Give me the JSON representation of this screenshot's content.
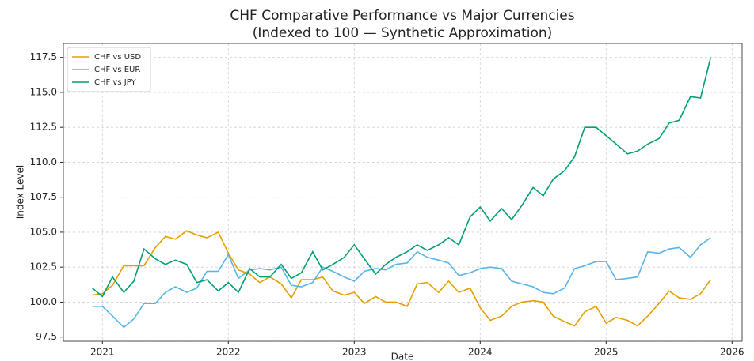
{
  "chart_data": {
    "type": "line",
    "title": "CHF Comparative Performance vs Major Currencies",
    "subtitle": "(Indexed to 100 — Synthetic Approximation)",
    "x_label": "Date",
    "y_label": "Index Level",
    "x": [
      2020.92,
      2021.0,
      2021.08,
      2021.17,
      2021.25,
      2021.33,
      2021.42,
      2021.5,
      2021.58,
      2021.67,
      2021.75,
      2021.83,
      2021.92,
      2022.0,
      2022.08,
      2022.17,
      2022.25,
      2022.33,
      2022.42,
      2022.5,
      2022.58,
      2022.67,
      2022.75,
      2022.83,
      2022.92,
      2023.0,
      2023.08,
      2023.17,
      2023.25,
      2023.33,
      2023.42,
      2023.5,
      2023.58,
      2023.67,
      2023.75,
      2023.83,
      2023.92,
      2024.0,
      2024.08,
      2024.17,
      2024.25,
      2024.33,
      2024.42,
      2024.5,
      2024.58,
      2024.67,
      2024.75,
      2024.83,
      2024.92,
      2025.0,
      2025.08,
      2025.17,
      2025.25,
      2025.33,
      2025.42,
      2025.5,
      2025.58,
      2025.67,
      2025.75,
      2025.83
    ],
    "series": [
      {
        "name": "CHF vs USD",
        "color": "#e69f00",
        "values": [
          100.5,
          100.6,
          101.2,
          102.6,
          102.6,
          102.6,
          103.9,
          104.7,
          104.5,
          105.1,
          104.8,
          104.6,
          105.0,
          103.5,
          102.3,
          102.0,
          101.4,
          101.8,
          101.3,
          100.3,
          101.6,
          101.6,
          101.8,
          100.8,
          100.5,
          100.7,
          99.9,
          100.4,
          100.0,
          100.0,
          99.7,
          101.3,
          101.4,
          100.7,
          101.5,
          100.7,
          101.0,
          99.6,
          98.7,
          99.0,
          99.7,
          100.0,
          100.1,
          100.0,
          99.0,
          98.6,
          98.3,
          99.3,
          99.7,
          98.5,
          98.9,
          98.7,
          98.3,
          99.0,
          99.9,
          100.8,
          100.3,
          100.2,
          100.6,
          101.6
        ]
      },
      {
        "name": "CHF vs EUR",
        "color": "#56b4e9",
        "values": [
          99.7,
          99.7,
          99.0,
          98.2,
          98.8,
          99.9,
          99.9,
          100.7,
          101.1,
          100.7,
          101.0,
          102.2,
          102.2,
          103.4,
          101.7,
          102.3,
          102.4,
          102.3,
          102.5,
          101.2,
          101.1,
          101.4,
          102.5,
          102.2,
          101.8,
          101.5,
          102.2,
          102.4,
          102.3,
          102.7,
          102.8,
          103.6,
          103.2,
          103.0,
          102.8,
          101.9,
          102.1,
          102.4,
          102.5,
          102.4,
          101.5,
          101.3,
          101.1,
          100.7,
          100.6,
          101.0,
          102.4,
          102.6,
          102.9,
          102.9,
          101.6,
          101.7,
          101.8,
          103.6,
          103.5,
          103.8,
          103.9,
          103.2,
          104.1,
          104.6
        ]
      },
      {
        "name": "CHF vs JPY",
        "color": "#009e73",
        "values": [
          101.0,
          100.4,
          101.8,
          100.7,
          101.5,
          103.8,
          103.1,
          102.7,
          103.0,
          102.7,
          101.4,
          101.6,
          100.8,
          101.4,
          100.7,
          102.4,
          101.8,
          101.8,
          102.7,
          101.7,
          102.1,
          103.6,
          102.3,
          102.7,
          103.2,
          104.1,
          103.1,
          102.0,
          102.7,
          103.2,
          103.6,
          104.1,
          103.7,
          104.1,
          104.6,
          104.1,
          106.1,
          106.8,
          105.8,
          106.7,
          105.9,
          106.9,
          108.2,
          107.6,
          108.8,
          109.4,
          110.4,
          112.5,
          112.5,
          111.9,
          111.3,
          110.6,
          110.8,
          111.3,
          111.7,
          112.8,
          113.0,
          114.7,
          114.6,
          117.5
        ]
      }
    ],
    "xlim": [
      2020.69,
      2026.08
    ],
    "xticks": [
      2021,
      2022,
      2023,
      2024,
      2025,
      2026
    ],
    "ylim": [
      97.2,
      118.5
    ],
    "yticks": [
      97.5,
      {
        "value": 100,
        "label": "100.0"
      },
      102.5,
      {
        "value": 105,
        "label": "105.0"
      },
      107.5,
      {
        "value": 110,
        "label": "110.0"
      },
      112.5,
      {
        "value": 115,
        "label": "115.0"
      },
      117.5
    ],
    "grid": true,
    "legend": "upper-left"
  }
}
